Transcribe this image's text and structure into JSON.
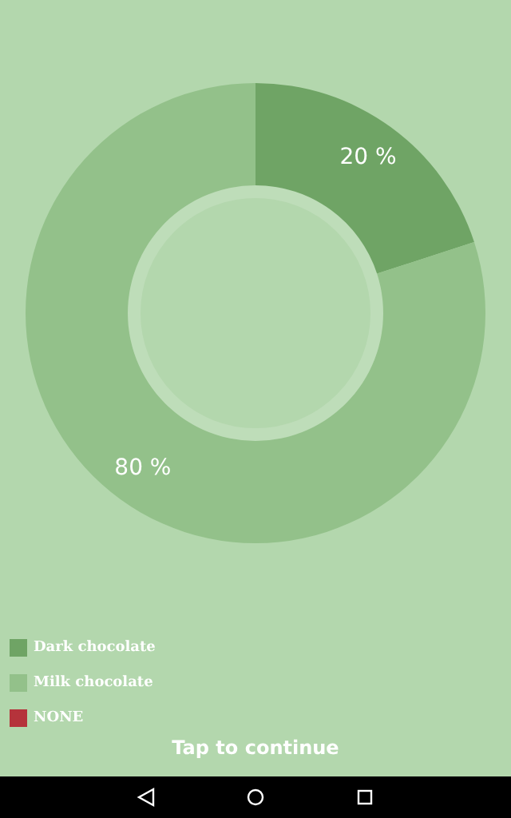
{
  "chart_data": {
    "type": "donut",
    "categories": [
      "Dark chocolate",
      "Milk chocolate",
      "NONE"
    ],
    "values": [
      20,
      80,
      0
    ],
    "colors": [
      "#6fa465",
      "#93c18a",
      "#b5333b"
    ],
    "value_labels": [
      "20 %",
      "80 %",
      null
    ],
    "legend": "bottom left",
    "annotations": [
      "Tap to continue"
    ]
  }
}
